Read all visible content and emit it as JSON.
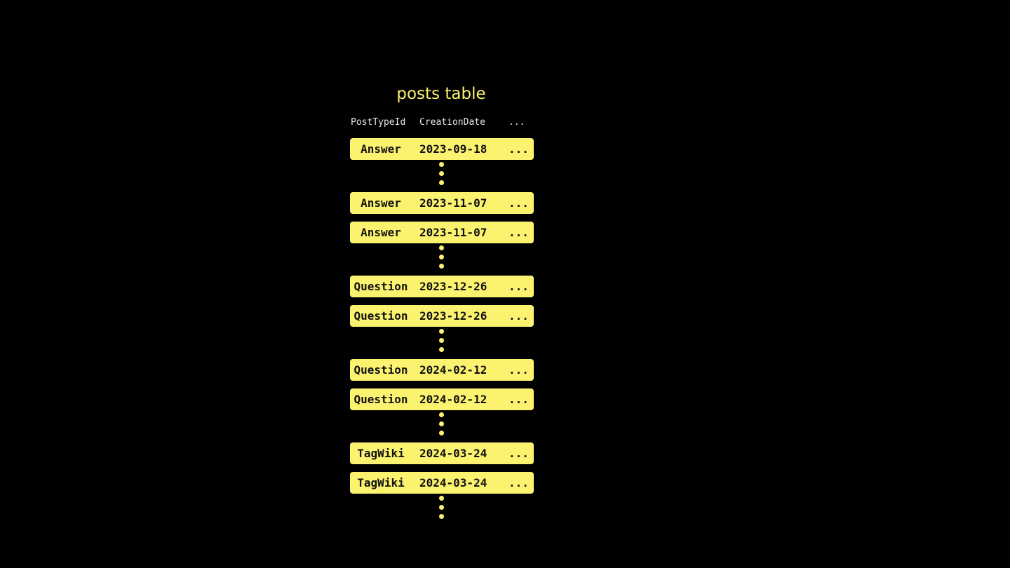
{
  "title": "posts table",
  "columns": [
    "PostTypeId",
    "CreationDate",
    "..."
  ],
  "accent_color": "#fbf36f",
  "items": [
    {
      "type": "row",
      "cells": [
        "Answer",
        "2023-09-18",
        "..."
      ]
    },
    {
      "type": "dots"
    },
    {
      "type": "row",
      "cells": [
        "Answer",
        "2023-11-07",
        "..."
      ]
    },
    {
      "type": "row",
      "cells": [
        "Answer",
        "2023-11-07",
        "..."
      ]
    },
    {
      "type": "dots"
    },
    {
      "type": "row",
      "cells": [
        "Question",
        "2023-12-26",
        "..."
      ]
    },
    {
      "type": "row",
      "cells": [
        "Question",
        "2023-12-26",
        "..."
      ]
    },
    {
      "type": "dots"
    },
    {
      "type": "row",
      "cells": [
        "Question",
        "2024-02-12",
        "..."
      ]
    },
    {
      "type": "row",
      "cells": [
        "Question",
        "2024-02-12",
        "..."
      ]
    },
    {
      "type": "dots"
    },
    {
      "type": "row",
      "cells": [
        "TagWiki",
        "2024-03-24",
        "..."
      ]
    },
    {
      "type": "row",
      "cells": [
        "TagWiki",
        "2024-03-24",
        "..."
      ]
    },
    {
      "type": "dots"
    }
  ]
}
